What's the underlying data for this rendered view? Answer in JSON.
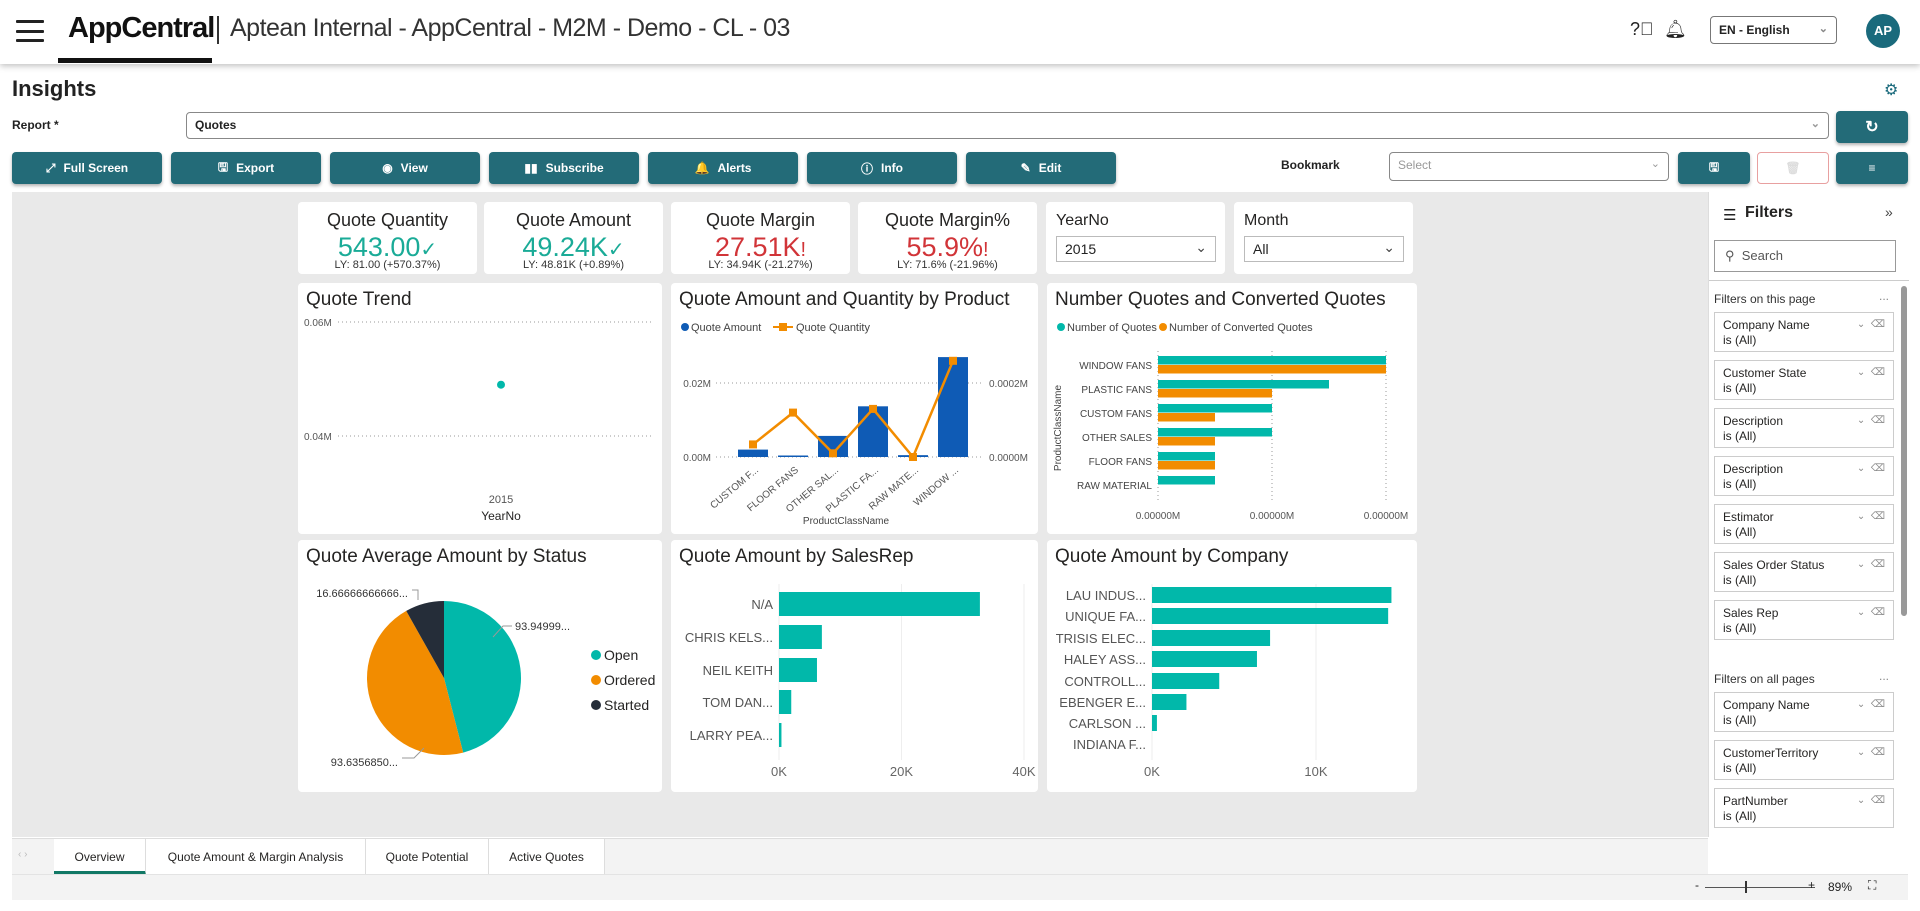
{
  "header": {
    "brand": "AppCentral",
    "org_title": "Aptean Internal - AppCentral - M2M - Demo - CL - 03",
    "language": "EN - English",
    "avatar_initials": "AP",
    "icons": [
      "menu-icon",
      "help-icon",
      "bell-icon"
    ]
  },
  "page": {
    "title": "Insights",
    "report_label": "Report *",
    "report_value": "Quotes",
    "bookmark_label": "Bookmark",
    "bookmark_placeholder": "Select"
  },
  "toolbar": [
    {
      "label": "Full Screen",
      "icon": "⤢"
    },
    {
      "label": "Export",
      "icon": "🖫"
    },
    {
      "label": "View",
      "icon": "◉"
    },
    {
      "label": "Subscribe",
      "icon": "▮▮"
    },
    {
      "label": "Alerts",
      "icon": "🔔"
    },
    {
      "label": "Info",
      "icon": "ⓘ"
    },
    {
      "label": "Edit",
      "icon": "✎"
    }
  ],
  "colors": {
    "teal": "#01b8aa",
    "orange": "#f28c00",
    "blue": "#0f5bb5",
    "dark": "#252d39",
    "red": "#d13438",
    "brand": "#236b78"
  },
  "kpis": [
    {
      "title": "Quote Quantity",
      "value": "543.00",
      "status": "✓",
      "ly": "LY: 81.00 (+570.37%)",
      "good": true
    },
    {
      "title": "Quote Amount",
      "value": "49.24K",
      "status": "✓",
      "ly": "LY: 48.81K (+0.89%)",
      "good": true
    },
    {
      "title": "Quote Margin",
      "value": "27.51K",
      "status": "!",
      "ly": "LY: 34.94K (-21.27%)",
      "good": false
    },
    {
      "title": "Quote Margin%",
      "value": "55.9%",
      "status": "!",
      "ly": "LY: 71.6% (-21.96%)",
      "good": false
    }
  ],
  "slicers": [
    {
      "title": "YearNo",
      "value": "2015"
    },
    {
      "title": "Month",
      "value": "All"
    }
  ],
  "chart_data": [
    {
      "title": "Quote Trend",
      "type": "scatter",
      "x": [
        "2015"
      ],
      "y": [
        0.049
      ],
      "xlabel": "YearNo",
      "ylabel": "",
      "yticks": [
        "0.04M",
        "0.06M"
      ],
      "ylim": [
        0.04,
        0.06
      ],
      "grid": true
    },
    {
      "title": "Quote Amount and Quantity by Product",
      "type": "bar+line",
      "categories": [
        "CUSTOM F...",
        "FLOOR FANS",
        "OTHER SAL...",
        "PLASTIC FA...",
        "RAW MATE...",
        "WINDOW ..."
      ],
      "series": [
        {
          "name": "Quote Amount",
          "type": "bar",
          "axis": "left",
          "values": [
            0.002,
            0.0003,
            0.0057,
            0.0137,
            0.0005,
            0.027
          ]
        },
        {
          "name": "Quote Quantity",
          "type": "line",
          "axis": "right",
          "values": [
            3.4e-05,
            0.00012,
            1e-05,
            0.00013,
            0.0,
            0.00026
          ]
        }
      ],
      "xlabel": "ProductClassName",
      "yticks_left": [
        "0.00M",
        "0.02M"
      ],
      "yticks_right": [
        "0.0000M",
        "0.0002M"
      ],
      "legend": "top-left"
    },
    {
      "title": "Number Quotes and Converted Quotes",
      "type": "bar",
      "orientation": "horizontal",
      "categories": [
        "WINDOW FANS",
        "PLASTIC FANS",
        "CUSTOM FANS",
        "OTHER SALES",
        "FLOOR FANS",
        "RAW MATERIAL"
      ],
      "series": [
        {
          "name": "Number of Quotes",
          "values": [
            4,
            3,
            2,
            2,
            1,
            1
          ]
        },
        {
          "name": "Number of Converted Quotes",
          "values": [
            4,
            2,
            1,
            1,
            1,
            0
          ]
        }
      ],
      "ylabel": "ProductClassName",
      "xticks": [
        "0.00000M",
        "0.00000M",
        "0.00000M"
      ],
      "xlim": [
        0,
        4
      ],
      "legend": "top-left"
    },
    {
      "title": "Quote Average Amount by Status",
      "type": "pie",
      "labels": [
        "Open",
        "Ordered",
        "Started"
      ],
      "values": [
        93.94999,
        93.635685,
        16.66666666666
      ],
      "data_labels": [
        "93.94999...",
        "93.6356850...",
        "16.66666666666..."
      ],
      "legend": "right"
    },
    {
      "title": "Quote Amount by SalesRep",
      "type": "bar",
      "orientation": "horizontal",
      "categories": [
        "N/A",
        "CHRIS KELS...",
        "NEIL KEITH",
        "TOM DAN...",
        "LARRY PEA..."
      ],
      "values": [
        32800,
        7000,
        6200,
        2000,
        400
      ],
      "xticks": [
        "0K",
        "20K",
        "40K"
      ],
      "xlim": [
        0,
        40000
      ]
    },
    {
      "title": "Quote Amount by Company",
      "type": "bar",
      "orientation": "horizontal",
      "categories": [
        "LAU INDUS...",
        "UNIQUE FA...",
        "TRISIS ELEC...",
        "HALEY ASS...",
        "CONTROLL...",
        "EBENGER E...",
        "CARLSON ...",
        "INDIANA F..."
      ],
      "values": [
        14600,
        14400,
        7200,
        6400,
        4100,
        2100,
        300,
        0
      ],
      "xticks": [
        "0K",
        "10K"
      ],
      "xlim": [
        0,
        14600
      ]
    }
  ],
  "filters": {
    "title": "Filters",
    "search_placeholder": "Search",
    "this_page_label": "Filters on this page",
    "all_pages_label": "Filters on all pages",
    "more": "...",
    "this_page": [
      {
        "name": "Company Name",
        "state": "is (All)"
      },
      {
        "name": "Customer State",
        "state": "is (All)"
      },
      {
        "name": "Description",
        "state": "is (All)"
      },
      {
        "name": "Description",
        "state": "is (All)"
      },
      {
        "name": "Estimator",
        "state": "is (All)"
      },
      {
        "name": "Sales Order Status",
        "state": "is (All)"
      },
      {
        "name": "Sales Rep",
        "state": "is (All)"
      }
    ],
    "all_pages": [
      {
        "name": "Company Name",
        "state": "is (All)"
      },
      {
        "name": "CustomerTerritory",
        "state": "is (All)"
      },
      {
        "name": "PartNumber",
        "state": "is (All)"
      }
    ]
  },
  "tabs": [
    {
      "label": "Overview",
      "active": true
    },
    {
      "label": "Quote Amount & Margin Analysis"
    },
    {
      "label": "Quote Potential"
    },
    {
      "label": "Active Quotes"
    }
  ],
  "status": {
    "zoom": "89%",
    "minus": "-",
    "plus": "+"
  }
}
